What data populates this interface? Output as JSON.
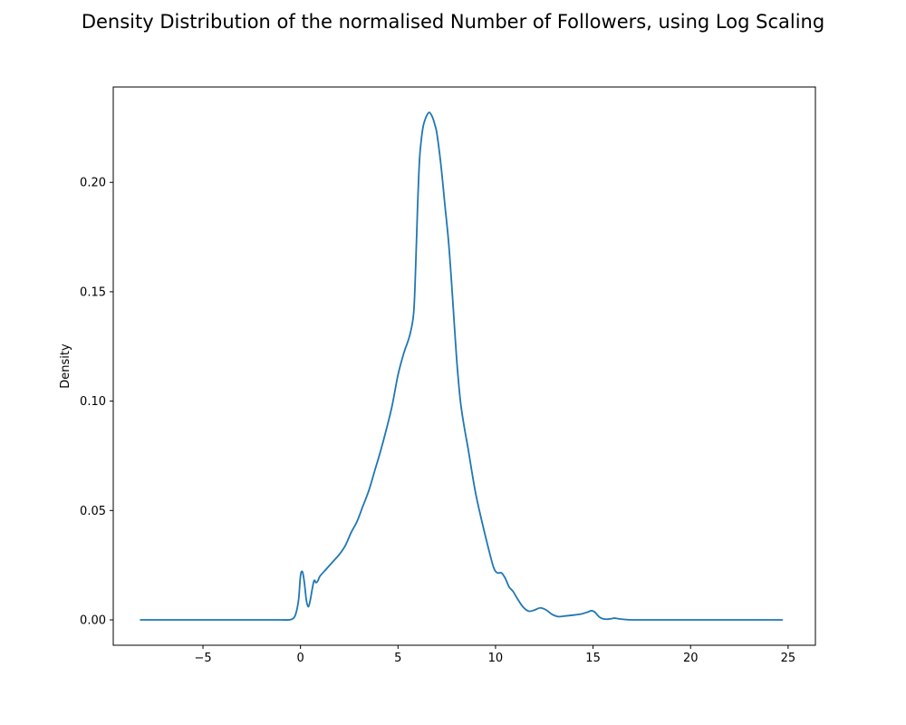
{
  "chart_data": {
    "type": "line",
    "title": "Density Distribution of the normalised Number of Followers, using Log Scaling",
    "xlabel": "",
    "ylabel": "Density",
    "xlim": [
      -9.6,
      26.4
    ],
    "ylim": [
      -0.0116,
      0.2436
    ],
    "xticks": [
      -5,
      0,
      5,
      10,
      15,
      20,
      25
    ],
    "yticks": [
      0.0,
      0.05,
      0.1,
      0.15,
      0.2
    ],
    "ytick_labels": [
      "0.00",
      "0.05",
      "0.10",
      "0.15",
      "0.20"
    ],
    "grid": false,
    "series_color": "#1f77b4",
    "series": [
      {
        "x": [
          -8.2,
          -5.0,
          -2.0,
          -1.0,
          -0.6,
          -0.4,
          -0.25,
          -0.1,
          0.0,
          0.1,
          0.2,
          0.3,
          0.4,
          0.5,
          0.6,
          0.7,
          0.8,
          0.9,
          1.0,
          1.3,
          1.6,
          2.0,
          2.3,
          2.6,
          2.9,
          3.2,
          3.5,
          3.8,
          4.1,
          4.4,
          4.7,
          5.0,
          5.3,
          5.6,
          5.8,
          5.9,
          6.0,
          6.1,
          6.2,
          6.3,
          6.4,
          6.5,
          6.6,
          6.7,
          6.8,
          6.9,
          7.0,
          7.2,
          7.4,
          7.6,
          7.8,
          8.0,
          8.2,
          8.4,
          8.6,
          8.8,
          9.0,
          9.3,
          9.6,
          9.9,
          10.1,
          10.3,
          10.5,
          10.7,
          10.9,
          11.1,
          11.4,
          11.7,
          12.0,
          12.3,
          12.6,
          12.9,
          13.2,
          13.5,
          13.8,
          14.1,
          14.4,
          14.7,
          14.9,
          15.0,
          15.1,
          15.3,
          15.5,
          15.7,
          15.9,
          16.1,
          16.3,
          16.6,
          17.0,
          18.0,
          20.0,
          22.0,
          24.7
        ],
        "y": [
          0.0,
          0.0,
          0.0,
          0.0,
          0.0,
          0.0005,
          0.0025,
          0.009,
          0.02,
          0.022,
          0.017,
          0.009,
          0.006,
          0.009,
          0.014,
          0.018,
          0.017,
          0.018,
          0.02,
          0.023,
          0.026,
          0.03,
          0.034,
          0.04,
          0.045,
          0.052,
          0.059,
          0.068,
          0.077,
          0.087,
          0.098,
          0.112,
          0.122,
          0.13,
          0.14,
          0.16,
          0.188,
          0.21,
          0.22,
          0.226,
          0.229,
          0.231,
          0.232,
          0.231,
          0.229,
          0.226,
          0.222,
          0.208,
          0.19,
          0.172,
          0.147,
          0.12,
          0.1,
          0.088,
          0.078,
          0.067,
          0.057,
          0.045,
          0.034,
          0.024,
          0.0215,
          0.0215,
          0.019,
          0.015,
          0.013,
          0.01,
          0.006,
          0.004,
          0.0045,
          0.0055,
          0.0045,
          0.0025,
          0.0015,
          0.0017,
          0.002,
          0.0023,
          0.0027,
          0.0035,
          0.0042,
          0.004,
          0.0035,
          0.0015,
          0.0005,
          0.0003,
          0.0005,
          0.0008,
          0.0005,
          0.0002,
          0.0,
          0.0,
          0.0,
          0.0,
          0.0
        ]
      }
    ]
  }
}
